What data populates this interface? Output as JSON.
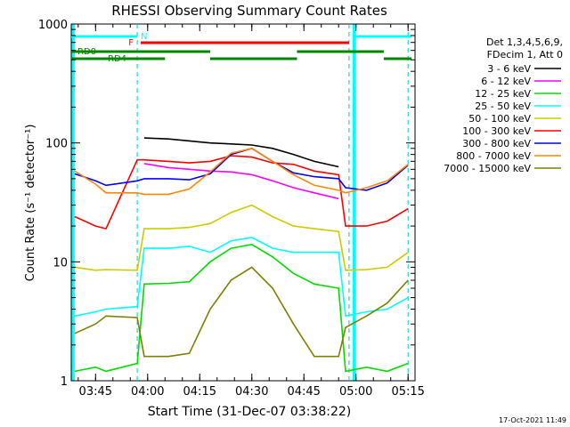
{
  "chart_data": {
    "type": "line",
    "title": "RHESSI Observing Summary Count Rates",
    "xlabel": "Start Time (31-Dec-07 03:38:22)",
    "ylabel": "Count Rate (s⁻¹ detector⁻¹)",
    "yscale": "log",
    "ylim": [
      1,
      1000
    ],
    "xlim": [
      "03:38",
      "05:17"
    ],
    "x_ticks": [
      "03:45",
      "04:00",
      "04:15",
      "04:30",
      "04:45",
      "05:00",
      "05:15"
    ],
    "y_ticks": [
      "1",
      "10",
      "100",
      "1000"
    ],
    "legend_header": [
      "Det 1,3,4,5,6,9,",
      "FDecim 1, Att 0"
    ],
    "legend_position": "right",
    "timestamp": "17-Oct-2021 11:49",
    "time_points": [
      "03:39",
      "03:45",
      "03:48",
      "03:57",
      "03:59",
      "04:06",
      "04:12",
      "04:18",
      "04:24",
      "04:30",
      "04:36",
      "04:42",
      "04:48",
      "04:55",
      "04:57",
      "05:03",
      "05:09",
      "05:15"
    ],
    "series": [
      {
        "name": "3 - 6 keV",
        "color": "#000000",
        "values": [
          null,
          null,
          null,
          null,
          110,
          108,
          104,
          100,
          98,
          96,
          90,
          80,
          70,
          63,
          null,
          null,
          null,
          null
        ]
      },
      {
        "name": "6 - 12 keV",
        "color": "#ff00ff",
        "values": [
          null,
          null,
          null,
          null,
          67,
          62,
          60,
          58,
          57,
          54,
          48,
          42,
          38,
          34,
          null,
          null,
          null,
          null
        ]
      },
      {
        "name": "12 - 25 keV",
        "color": "#00dd00",
        "values": [
          1.2,
          1.3,
          1.2,
          1.4,
          6.5,
          6.6,
          6.8,
          10,
          13,
          14,
          11,
          8,
          6.5,
          6,
          1.2,
          1.3,
          1.2,
          1.4
        ]
      },
      {
        "name": "25 - 50 keV",
        "color": "#00ffff",
        "values": [
          3.5,
          3.8,
          4.0,
          4.2,
          13,
          13,
          13.5,
          12,
          15,
          16,
          13,
          12,
          12,
          12,
          3.5,
          3.8,
          4,
          5
        ]
      },
      {
        "name": "50 - 100 keV",
        "color": "#cccc00",
        "values": [
          9,
          8.5,
          8.6,
          8.5,
          19,
          19,
          19.5,
          21,
          26,
          30,
          24,
          20,
          19,
          18,
          8.5,
          8.6,
          9,
          12
        ]
      },
      {
        "name": "100 - 300 keV",
        "color": "#ff0000",
        "values": [
          24,
          20,
          19,
          72,
          72,
          70,
          68,
          70,
          78,
          76,
          68,
          66,
          58,
          54,
          20,
          20,
          22,
          28
        ]
      },
      {
        "name": "300 - 800 keV",
        "color": "#0000ff",
        "values": [
          55,
          48,
          44,
          48,
          50,
          50,
          49,
          55,
          80,
          90,
          70,
          56,
          52,
          50,
          42,
          40,
          46,
          65
        ]
      },
      {
        "name": "800 - 7000 keV",
        "color": "#ff8800",
        "values": [
          58,
          45,
          38,
          38,
          37,
          37,
          41,
          57,
          82,
          90,
          70,
          54,
          44,
          40,
          38,
          42,
          48,
          66
        ]
      },
      {
        "name": "7000 - 15000 keV",
        "color": "#808000",
        "values": [
          2.5,
          3.0,
          3.5,
          3.4,
          1.6,
          1.6,
          1.7,
          4,
          7,
          9,
          6,
          3,
          1.6,
          1.6,
          2.8,
          3.5,
          4.5,
          7
        ]
      }
    ],
    "state_bars": [
      {
        "label": "N",
        "color": "#00ffff",
        "segments": [
          [
            "03:38",
            "03:57"
          ],
          [
            "05:00",
            "05:16"
          ]
        ]
      },
      {
        "label": "F",
        "color": "#ff0000",
        "segments": [
          [
            "03:58",
            "04:58"
          ]
        ]
      },
      {
        "label": "RD0",
        "color": "#008800",
        "segments": [
          [
            "03:38",
            "04:18"
          ],
          [
            "04:43",
            "05:08"
          ]
        ]
      },
      {
        "label": "RD4",
        "color": "#008800",
        "segments": [
          [
            "03:38",
            "04:05"
          ],
          [
            "04:18",
            "04:43"
          ],
          [
            "05:08",
            "05:16"
          ]
        ]
      }
    ],
    "eclipse_boundaries": [
      "03:57",
      "04:58",
      "05:15"
    ],
    "night_bands": [
      [
        "03:38",
        "03:39"
      ],
      [
        "04:59",
        "05:00"
      ]
    ]
  }
}
